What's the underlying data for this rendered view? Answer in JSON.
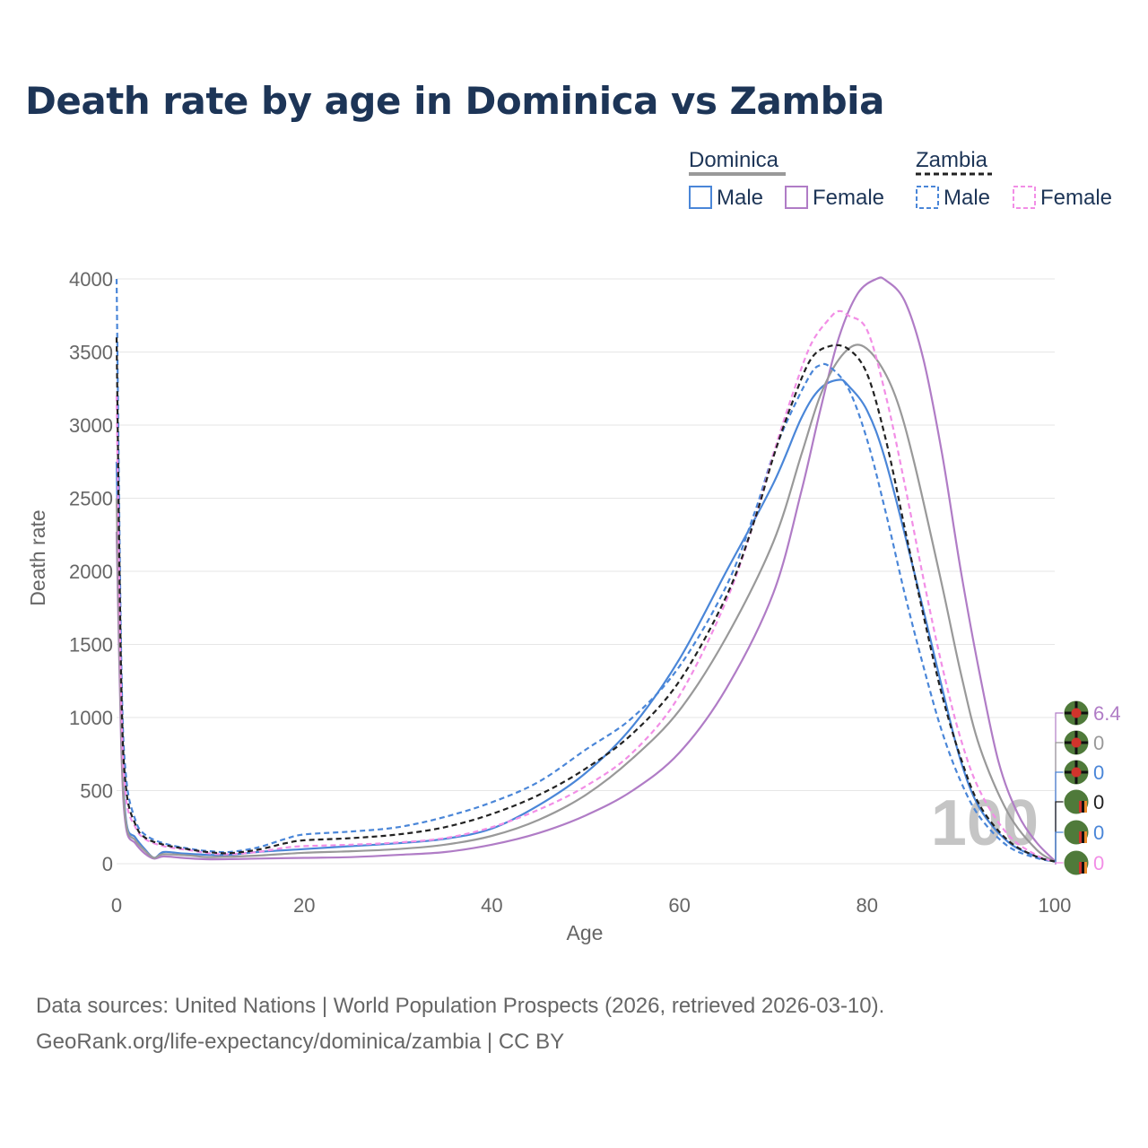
{
  "chart_data": {
    "type": "line",
    "title": "Death rate by age in Dominica vs Zambia",
    "xlabel": "Age",
    "ylabel": "Death rate",
    "xlim": [
      0,
      100
    ],
    "ylim": [
      0,
      4000
    ],
    "xticks": [
      0,
      20,
      40,
      60,
      80,
      100
    ],
    "yticks": [
      0,
      500,
      1000,
      1500,
      2000,
      2500,
      3000,
      3500,
      4000
    ],
    "grid": true,
    "year_watermark": "100",
    "legend": {
      "groups": [
        {
          "name": "Dominica",
          "items": [
            "Male",
            "Female"
          ]
        },
        {
          "name": "Zambia",
          "items": [
            "Male",
            "Female"
          ]
        }
      ],
      "position": "top-right"
    },
    "series": [
      {
        "name": "Dominica Male",
        "country": "Dominica",
        "sex": "Male",
        "color": "#4a86d8",
        "dash": "solid",
        "end_value": "0",
        "points": [
          [
            0,
            2750
          ],
          [
            0.5,
            1000
          ],
          [
            1,
            300
          ],
          [
            2,
            180
          ],
          [
            3,
            100
          ],
          [
            4,
            40
          ],
          [
            5,
            80
          ],
          [
            7,
            70
          ],
          [
            10,
            60
          ],
          [
            12,
            60
          ],
          [
            15,
            80
          ],
          [
            20,
            100
          ],
          [
            25,
            120
          ],
          [
            30,
            140
          ],
          [
            35,
            170
          ],
          [
            40,
            240
          ],
          [
            45,
            400
          ],
          [
            50,
            620
          ],
          [
            55,
            940
          ],
          [
            60,
            1400
          ],
          [
            65,
            2000
          ],
          [
            70,
            2600
          ],
          [
            73,
            3050
          ],
          [
            75,
            3250
          ],
          [
            77,
            3310
          ],
          [
            78,
            3270
          ],
          [
            80,
            3100
          ],
          [
            82,
            2750
          ],
          [
            85,
            2000
          ],
          [
            88,
            1200
          ],
          [
            90,
            700
          ],
          [
            92,
            380
          ],
          [
            95,
            150
          ],
          [
            98,
            50
          ],
          [
            100,
            15
          ]
        ]
      },
      {
        "name": "Dominica Female",
        "country": "Dominica",
        "sex": "Female",
        "color": "#b07cc6",
        "dash": "solid",
        "end_value": "6.4",
        "points": [
          [
            0,
            2270
          ],
          [
            0.5,
            800
          ],
          [
            1,
            250
          ],
          [
            2,
            140
          ],
          [
            3,
            70
          ],
          [
            4,
            35
          ],
          [
            5,
            50
          ],
          [
            7,
            40
          ],
          [
            10,
            30
          ],
          [
            15,
            35
          ],
          [
            20,
            40
          ],
          [
            25,
            45
          ],
          [
            30,
            60
          ],
          [
            35,
            80
          ],
          [
            40,
            130
          ],
          [
            45,
            210
          ],
          [
            50,
            330
          ],
          [
            55,
            500
          ],
          [
            60,
            760
          ],
          [
            65,
            1200
          ],
          [
            70,
            1850
          ],
          [
            73,
            2550
          ],
          [
            75,
            3100
          ],
          [
            77,
            3600
          ],
          [
            79,
            3900
          ],
          [
            81,
            4000
          ],
          [
            82,
            3990
          ],
          [
            84,
            3850
          ],
          [
            86,
            3450
          ],
          [
            88,
            2800
          ],
          [
            90,
            2000
          ],
          [
            92,
            1300
          ],
          [
            94,
            700
          ],
          [
            96,
            350
          ],
          [
            98,
            150
          ],
          [
            100,
            20
          ]
        ]
      },
      {
        "name": "Dominica Total",
        "country": "Dominica",
        "sex": "Total",
        "color": "#999999",
        "dash": "solid",
        "end_value": "0",
        "points": [
          [
            0,
            2500
          ],
          [
            0.5,
            900
          ],
          [
            1,
            280
          ],
          [
            2,
            160
          ],
          [
            3,
            90
          ],
          [
            4,
            40
          ],
          [
            5,
            65
          ],
          [
            8,
            55
          ],
          [
            10,
            45
          ],
          [
            15,
            55
          ],
          [
            20,
            75
          ],
          [
            25,
            85
          ],
          [
            30,
            100
          ],
          [
            35,
            130
          ],
          [
            40,
            190
          ],
          [
            45,
            300
          ],
          [
            50,
            470
          ],
          [
            55,
            720
          ],
          [
            60,
            1050
          ],
          [
            65,
            1550
          ],
          [
            70,
            2200
          ],
          [
            73,
            2800
          ],
          [
            75,
            3200
          ],
          [
            77,
            3450
          ],
          [
            79,
            3550
          ],
          [
            81,
            3450
          ],
          [
            83,
            3200
          ],
          [
            85,
            2750
          ],
          [
            88,
            1900
          ],
          [
            90,
            1300
          ],
          [
            92,
            800
          ],
          [
            95,
            350
          ],
          [
            98,
            100
          ],
          [
            100,
            15
          ]
        ]
      },
      {
        "name": "Zambia Male",
        "country": "Zambia",
        "sex": "Male",
        "color": "#4a86d8",
        "dash": "dashed",
        "end_value": "0",
        "points": [
          [
            0,
            4000
          ],
          [
            0.5,
            1400
          ],
          [
            1,
            600
          ],
          [
            2,
            300
          ],
          [
            3,
            200
          ],
          [
            5,
            140
          ],
          [
            8,
            100
          ],
          [
            10,
            85
          ],
          [
            12,
            80
          ],
          [
            15,
            110
          ],
          [
            18,
            170
          ],
          [
            20,
            200
          ],
          [
            25,
            220
          ],
          [
            30,
            250
          ],
          [
            35,
            320
          ],
          [
            40,
            420
          ],
          [
            45,
            560
          ],
          [
            50,
            780
          ],
          [
            55,
            1000
          ],
          [
            60,
            1350
          ],
          [
            65,
            1900
          ],
          [
            68,
            2400
          ],
          [
            70,
            2800
          ],
          [
            72,
            3100
          ],
          [
            74,
            3350
          ],
          [
            75,
            3410
          ],
          [
            76,
            3400
          ],
          [
            78,
            3250
          ],
          [
            80,
            2900
          ],
          [
            82,
            2400
          ],
          [
            84,
            1850
          ],
          [
            86,
            1350
          ],
          [
            88,
            900
          ],
          [
            90,
            560
          ],
          [
            92,
            320
          ],
          [
            95,
            120
          ],
          [
            98,
            40
          ],
          [
            100,
            15
          ]
        ]
      },
      {
        "name": "Zambia Female",
        "country": "Zambia",
        "sex": "Female",
        "color": "#f28ee6",
        "dash": "dashed",
        "end_value": "0",
        "points": [
          [
            0,
            3200
          ],
          [
            0.5,
            1100
          ],
          [
            1,
            450
          ],
          [
            2,
            250
          ],
          [
            3,
            170
          ],
          [
            5,
            120
          ],
          [
            8,
            90
          ],
          [
            10,
            70
          ],
          [
            12,
            65
          ],
          [
            15,
            80
          ],
          [
            18,
            110
          ],
          [
            20,
            120
          ],
          [
            25,
            130
          ],
          [
            30,
            145
          ],
          [
            35,
            175
          ],
          [
            40,
            250
          ],
          [
            45,
            370
          ],
          [
            50,
            530
          ],
          [
            55,
            760
          ],
          [
            60,
            1150
          ],
          [
            65,
            1800
          ],
          [
            68,
            2350
          ],
          [
            70,
            2800
          ],
          [
            72,
            3200
          ],
          [
            74,
            3550
          ],
          [
            76,
            3730
          ],
          [
            77,
            3780
          ],
          [
            78,
            3750
          ],
          [
            80,
            3650
          ],
          [
            82,
            3200
          ],
          [
            84,
            2600
          ],
          [
            86,
            1950
          ],
          [
            88,
            1350
          ],
          [
            90,
            850
          ],
          [
            92,
            500
          ],
          [
            95,
            200
          ],
          [
            98,
            60
          ],
          [
            100,
            15
          ]
        ]
      },
      {
        "name": "Zambia Total",
        "country": "Zambia",
        "sex": "Total",
        "color": "#222222",
        "dash": "dashed",
        "end_value": "0",
        "points": [
          [
            0,
            3600
          ],
          [
            0.5,
            1250
          ],
          [
            1,
            520
          ],
          [
            2,
            270
          ],
          [
            3,
            180
          ],
          [
            5,
            130
          ],
          [
            8,
            95
          ],
          [
            10,
            78
          ],
          [
            12,
            72
          ],
          [
            15,
            95
          ],
          [
            18,
            140
          ],
          [
            20,
            160
          ],
          [
            25,
            175
          ],
          [
            30,
            200
          ],
          [
            35,
            250
          ],
          [
            40,
            340
          ],
          [
            45,
            470
          ],
          [
            50,
            650
          ],
          [
            55,
            890
          ],
          [
            60,
            1250
          ],
          [
            65,
            1830
          ],
          [
            68,
            2350
          ],
          [
            70,
            2780
          ],
          [
            72,
            3150
          ],
          [
            74,
            3450
          ],
          [
            76,
            3540
          ],
          [
            78,
            3520
          ],
          [
            80,
            3350
          ],
          [
            82,
            2900
          ],
          [
            84,
            2300
          ],
          [
            86,
            1700
          ],
          [
            88,
            1150
          ],
          [
            90,
            720
          ],
          [
            92,
            400
          ],
          [
            95,
            160
          ],
          [
            98,
            50
          ],
          [
            100,
            15
          ]
        ]
      }
    ]
  },
  "sources": {
    "line1": "Data sources: United Nations | World Population Prospects (2026, retrieved 2026-03-10).",
    "line2": "GeoRank.org/life-expectancy/dominica/zambia | CC BY"
  }
}
